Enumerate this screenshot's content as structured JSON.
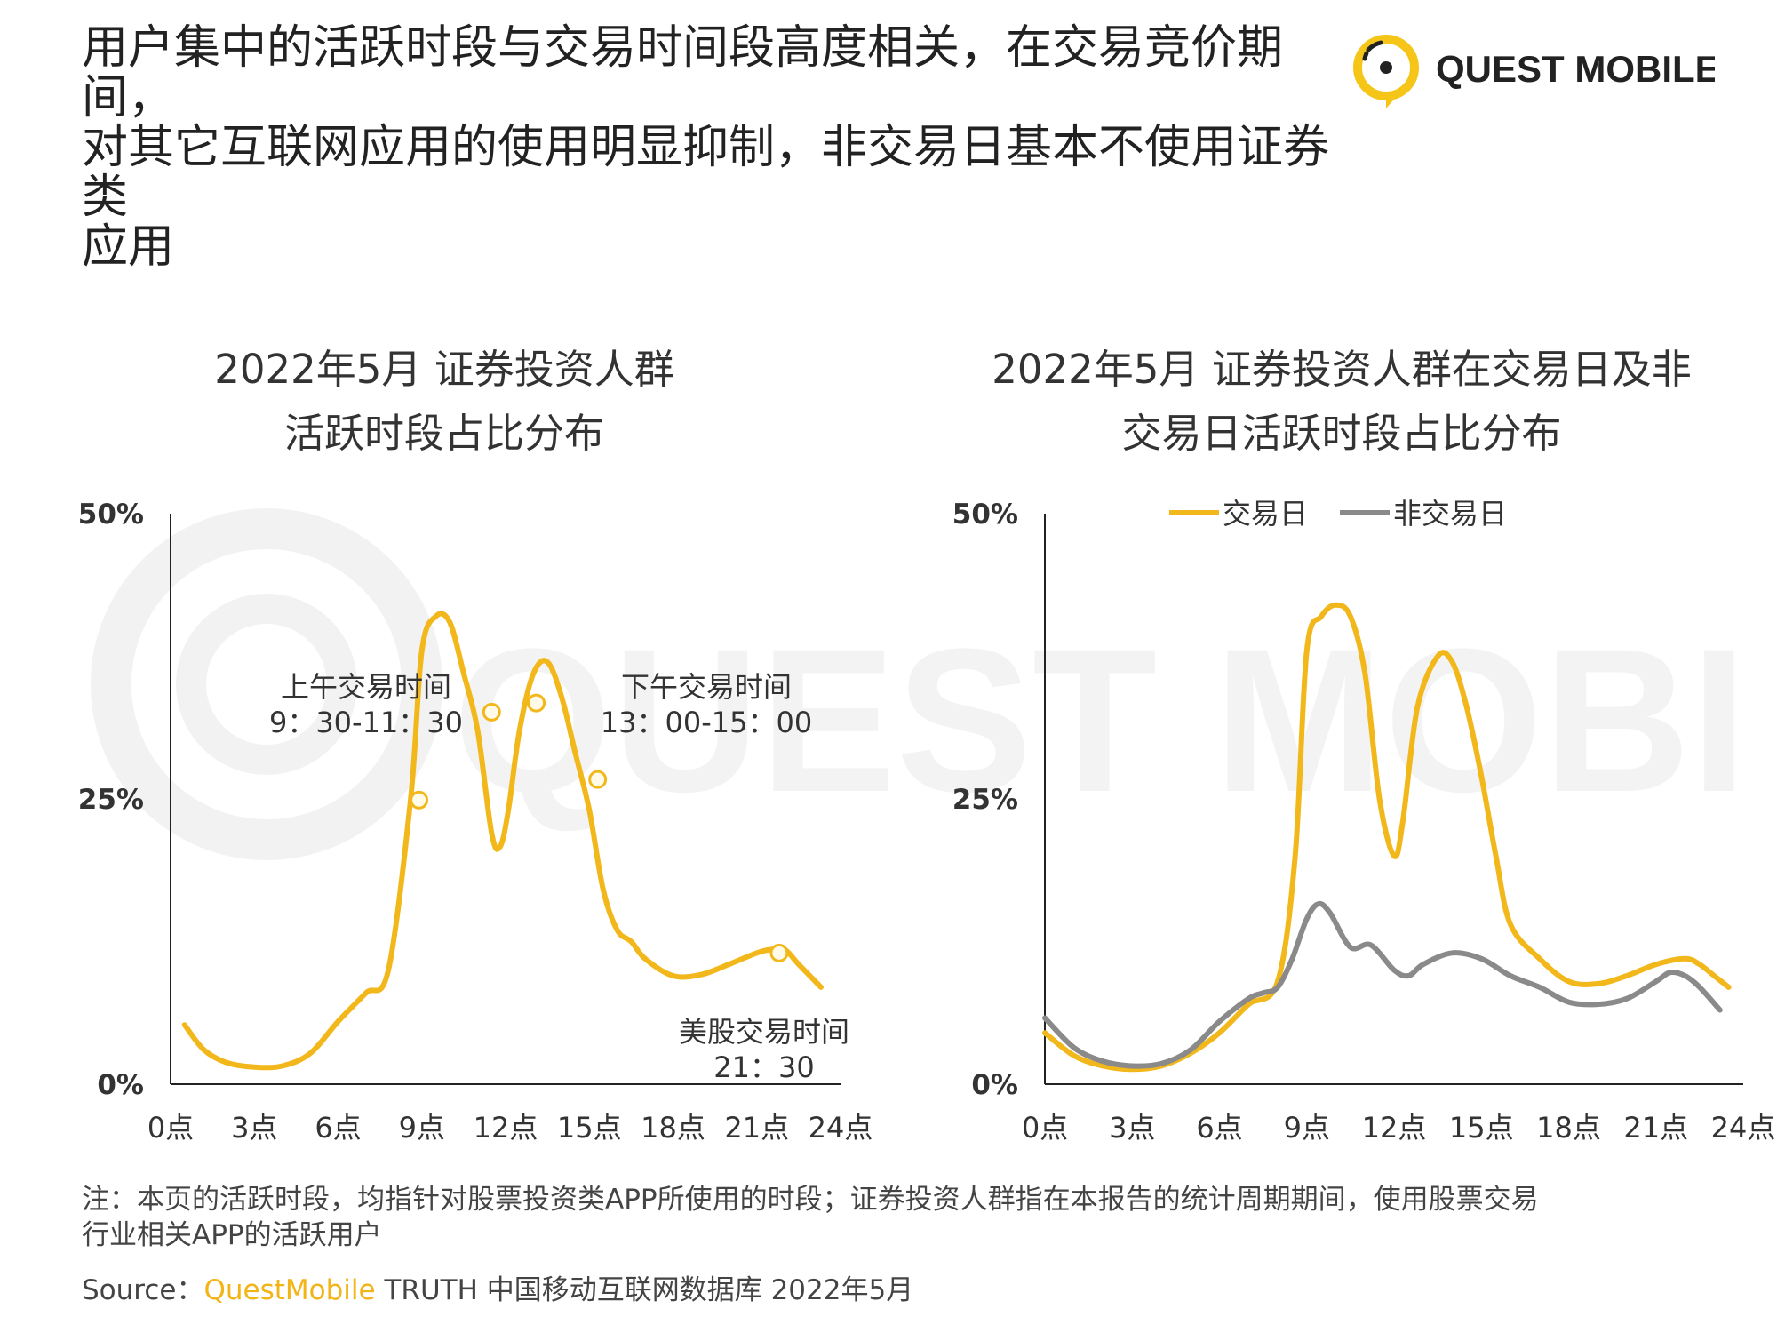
{
  "headline": {
    "line1": "用户集中的活跃时段与交易时间段高度相关，在交易竞价期间，",
    "line2": "对其它互联网应用的使用明显抑制，非交易日基本不使用证券类",
    "line3": "应用"
  },
  "logo": {
    "text": "QUEST MOBILE",
    "color": "#f5c518",
    "icon": "questmobile-logo-icon"
  },
  "watermark": {
    "text": "QUEST MOBILE"
  },
  "colors": {
    "trading": "#f2b81b",
    "non_trading": "#8a8a8a",
    "axis": "#222222",
    "accent": "#f2b416"
  },
  "chart_data": [
    {
      "type": "line",
      "title_lines": [
        "2022年5月 证券投资人群",
        "活跃时段占比分布"
      ],
      "y_ticks": [
        "0%",
        "25%",
        "50%"
      ],
      "ylim": [
        0,
        50
      ],
      "x_ticks": [
        "0点",
        "3点",
        "6点",
        "9点",
        "12点",
        "15点",
        "18点",
        "21点",
        "24点"
      ],
      "xlim": [
        0,
        24
      ],
      "series": [
        {
          "key": "trading",
          "x": [
            0.5,
            1.2,
            2.0,
            3.0,
            4.0,
            5.0,
            6.0,
            7.0,
            7.8,
            8.6,
            9.0,
            9.5,
            10.0,
            10.5,
            11.0,
            11.5,
            11.8,
            12.1,
            12.5,
            13.0,
            13.5,
            14.0,
            14.5,
            15.0,
            15.5,
            16.0,
            16.5,
            17.0,
            18.0,
            19.0,
            20.0,
            21.0,
            21.5,
            22.0,
            22.5,
            23.3
          ],
          "values": [
            5.2,
            3.0,
            1.9,
            1.5,
            1.6,
            2.7,
            5.5,
            8.0,
            10.0,
            25.0,
            38.0,
            41.0,
            40.5,
            36.0,
            31.0,
            22.0,
            20.8,
            24.0,
            31.0,
            36.0,
            37.0,
            34.0,
            29.0,
            24.0,
            17.0,
            13.5,
            12.5,
            11.0,
            9.5,
            9.6,
            10.5,
            11.5,
            11.8,
            11.8,
            10.5,
            8.5
          ]
        }
      ],
      "markers": [
        {
          "x": 8.9,
          "y": 24.9
        },
        {
          "x": 11.5,
          "y": 32.6
        },
        {
          "x": 13.1,
          "y": 33.4
        },
        {
          "x": 15.3,
          "y": 26.7
        },
        {
          "x": 21.8,
          "y": 11.5
        }
      ],
      "annotations": [
        {
          "text": "上午交易时间",
          "subtext": "9：30-11：30"
        },
        {
          "text": "下午交易时间",
          "subtext": "13：00-15：00"
        },
        {
          "text": "美股交易时间",
          "subtext": "21：30"
        }
      ]
    },
    {
      "type": "line",
      "title_lines": [
        "2022年5月 证券投资人群在交易日及非",
        "交易日活跃时段占比分布"
      ],
      "y_ticks": [
        "0%",
        "25%",
        "50%"
      ],
      "ylim": [
        0,
        50
      ],
      "x_ticks": [
        "0点",
        "3点",
        "6点",
        "9点",
        "12点",
        "15点",
        "18点",
        "21点",
        "24点"
      ],
      "xlim": [
        0,
        24
      ],
      "legend": [
        {
          "key": "trading",
          "label": "交易日"
        },
        {
          "key": "non_trading",
          "label": "非交易日"
        }
      ],
      "legend_position": "top",
      "series": [
        {
          "key": "trading",
          "name": "交易日",
          "x": [
            0.0,
            1.0,
            2.0,
            3.0,
            4.0,
            5.0,
            6.0,
            7.0,
            8.0,
            8.6,
            9.0,
            9.5,
            10.0,
            10.5,
            11.0,
            11.5,
            12.0,
            12.3,
            12.8,
            13.5,
            14.0,
            14.5,
            15.0,
            15.5,
            16.0,
            17.0,
            18.0,
            19.0,
            20.0,
            21.0,
            22.0,
            22.5,
            23.0,
            23.5
          ],
          "values": [
            4.5,
            2.5,
            1.6,
            1.3,
            1.6,
            2.7,
            4.5,
            7.0,
            9.0,
            20.0,
            38.0,
            41.0,
            42.0,
            41.0,
            36.0,
            25.0,
            20.0,
            23.0,
            33.0,
            37.5,
            37.0,
            33.0,
            27.0,
            20.0,
            14.0,
            11.0,
            9.0,
            8.8,
            9.5,
            10.5,
            11.0,
            10.5,
            9.5,
            8.5
          ]
        },
        {
          "key": "non_trading",
          "name": "非交易日",
          "x": [
            0.0,
            1.0,
            2.0,
            3.0,
            4.0,
            5.0,
            6.0,
            7.0,
            7.5,
            8.0,
            8.5,
            9.0,
            9.4,
            9.8,
            10.5,
            11.2,
            12.0,
            12.5,
            13.0,
            14.0,
            15.0,
            16.0,
            17.0,
            18.0,
            19.0,
            20.0,
            21.0,
            21.5,
            22.0,
            22.5,
            23.2
          ],
          "values": [
            5.8,
            3.2,
            2.0,
            1.6,
            1.8,
            3.0,
            5.5,
            7.5,
            8.0,
            8.5,
            11.0,
            14.5,
            15.8,
            15.0,
            12.0,
            12.2,
            10.0,
            9.5,
            10.5,
            11.5,
            11.0,
            9.5,
            8.5,
            7.2,
            7.0,
            7.5,
            9.0,
            9.8,
            9.5,
            8.5,
            6.5
          ]
        }
      ]
    }
  ],
  "note": {
    "line1": "注：本页的活跃时段，均指针对股票投资类APP所使用的时段；证券投资人群指在本报告的统计周期期间，使用股票交易",
    "line2": "行业相关APP的活跃用户"
  },
  "source": {
    "label": "Source：",
    "brand": "QuestMobile",
    "rest": " TRUTH 中国移动互联网数据库 2022年5月"
  }
}
